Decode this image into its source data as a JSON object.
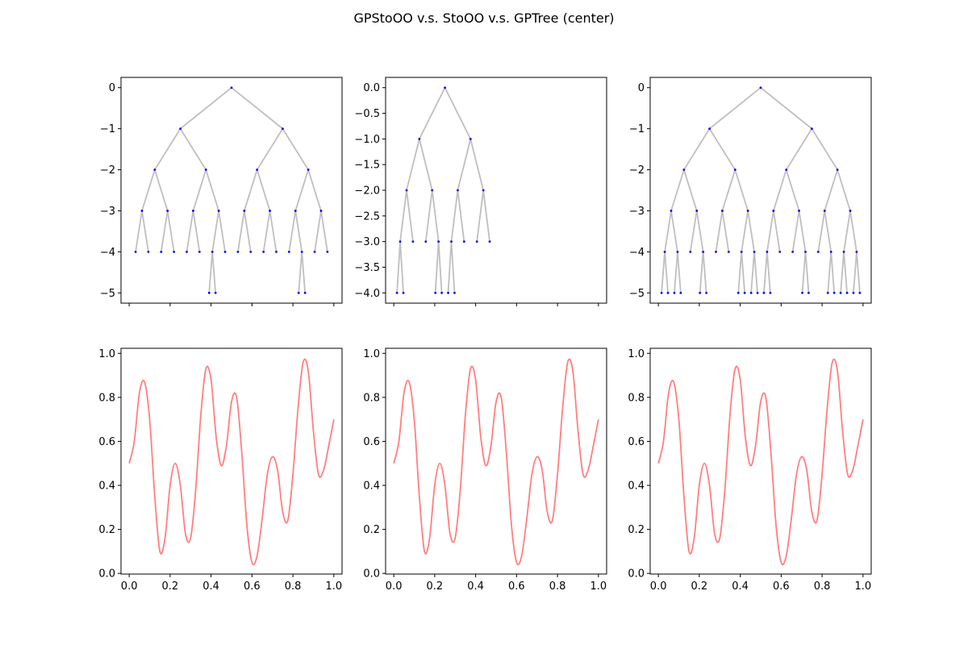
{
  "figure": {
    "title": "GPStoOO v.s. StoOO v.s. GPTree (center)"
  },
  "colors": {
    "tree_edge": "#bfbfbf",
    "tree_node": "#0000ff",
    "curve": "#ff7f7f",
    "axes": "#000000"
  },
  "chart_data": [
    {
      "type": "tree",
      "panel": "top-left",
      "ylim": [
        -5.25,
        0.25
      ],
      "xlim": [
        -0.04,
        1.04
      ],
      "yticks": [
        0,
        -1,
        -2,
        -3,
        -4,
        -5
      ],
      "ytick_labels": [
        "0",
        "−1",
        "−2",
        "−3",
        "−4",
        "−5"
      ],
      "xticks": [
        0,
        0.2,
        0.4,
        0.6,
        0.8,
        1.0
      ],
      "xtick_labels_visible": false,
      "node_x_unit": "(i + 0.5) / 2^depth",
      "depth_sign": -1,
      "nodes": [
        [
          0,
          0
        ],
        [
          1,
          0
        ],
        [
          1,
          1
        ],
        [
          2,
          0
        ],
        [
          2,
          1
        ],
        [
          2,
          2
        ],
        [
          2,
          3
        ],
        [
          3,
          0
        ],
        [
          3,
          1
        ],
        [
          3,
          2
        ],
        [
          3,
          3
        ],
        [
          3,
          4
        ],
        [
          3,
          5
        ],
        [
          3,
          6
        ],
        [
          3,
          7
        ],
        [
          4,
          0
        ],
        [
          4,
          1
        ],
        [
          4,
          2
        ],
        [
          4,
          3
        ],
        [
          4,
          4
        ],
        [
          4,
          5
        ],
        [
          4,
          6
        ],
        [
          4,
          7
        ],
        [
          4,
          8
        ],
        [
          4,
          9
        ],
        [
          4,
          10
        ],
        [
          4,
          11
        ],
        [
          4,
          12
        ],
        [
          4,
          13
        ],
        [
          4,
          14
        ],
        [
          4,
          15
        ],
        [
          5,
          12
        ],
        [
          5,
          13
        ],
        [
          5,
          26
        ],
        [
          5,
          27
        ]
      ]
    },
    {
      "type": "tree",
      "panel": "top-middle",
      "ylim": [
        -4.2,
        0.2
      ],
      "xlim": [
        -0.04,
        1.04
      ],
      "yticks": [
        0,
        -0.5,
        -1,
        -1.5,
        -2,
        -2.5,
        -3,
        -3.5,
        -4
      ],
      "ytick_labels": [
        "0.0",
        "−0.5",
        "−1.0",
        "−1.5",
        "−2.0",
        "−2.5",
        "−3.0",
        "−3.5",
        "−4.0"
      ],
      "xticks": [
        0,
        0.2,
        0.4,
        0.6,
        0.8,
        1.0
      ],
      "xtick_labels_visible": false,
      "node_x_unit": "(i + 0.5) / 2^(depth+1)",
      "depth_sign": -1,
      "nodes": [
        [
          0,
          0
        ],
        [
          1,
          0
        ],
        [
          1,
          1
        ],
        [
          2,
          0
        ],
        [
          2,
          1
        ],
        [
          2,
          2
        ],
        [
          2,
          3
        ],
        [
          3,
          0
        ],
        [
          3,
          1
        ],
        [
          3,
          2
        ],
        [
          3,
          3
        ],
        [
          3,
          4
        ],
        [
          3,
          5
        ],
        [
          3,
          6
        ],
        [
          3,
          7
        ],
        [
          4,
          0
        ],
        [
          4,
          1
        ],
        [
          4,
          6
        ],
        [
          4,
          7
        ],
        [
          4,
          8
        ],
        [
          4,
          9
        ]
      ]
    },
    {
      "type": "tree",
      "panel": "top-right",
      "ylim": [
        -5.25,
        0.25
      ],
      "xlim": [
        -0.04,
        1.04
      ],
      "yticks": [
        0,
        -1,
        -2,
        -3,
        -4,
        -5
      ],
      "ytick_labels": [
        "0",
        "−1",
        "−2",
        "−3",
        "−4",
        "−5"
      ],
      "xticks": [
        0,
        0.2,
        0.4,
        0.6,
        0.8,
        1.0
      ],
      "xtick_labels_visible": false,
      "node_x_unit": "(i + 0.5) / 2^depth",
      "depth_sign": -1,
      "nodes": [
        [
          0,
          0
        ],
        [
          1,
          0
        ],
        [
          1,
          1
        ],
        [
          2,
          0
        ],
        [
          2,
          1
        ],
        [
          2,
          2
        ],
        [
          2,
          3
        ],
        [
          3,
          0
        ],
        [
          3,
          1
        ],
        [
          3,
          2
        ],
        [
          3,
          3
        ],
        [
          3,
          4
        ],
        [
          3,
          5
        ],
        [
          3,
          6
        ],
        [
          3,
          7
        ],
        [
          4,
          0
        ],
        [
          4,
          1
        ],
        [
          4,
          2
        ],
        [
          4,
          3
        ],
        [
          4,
          4
        ],
        [
          4,
          5
        ],
        [
          4,
          6
        ],
        [
          4,
          7
        ],
        [
          4,
          8
        ],
        [
          4,
          9
        ],
        [
          4,
          10
        ],
        [
          4,
          11
        ],
        [
          4,
          12
        ],
        [
          4,
          13
        ],
        [
          4,
          14
        ],
        [
          4,
          15
        ],
        [
          5,
          0
        ],
        [
          5,
          1
        ],
        [
          5,
          2
        ],
        [
          5,
          3
        ],
        [
          5,
          6
        ],
        [
          5,
          7
        ],
        [
          5,
          12
        ],
        [
          5,
          13
        ],
        [
          5,
          14
        ],
        [
          5,
          15
        ],
        [
          5,
          16
        ],
        [
          5,
          17
        ],
        [
          5,
          22
        ],
        [
          5,
          23
        ],
        [
          5,
          26
        ],
        [
          5,
          27
        ],
        [
          5,
          28
        ],
        [
          5,
          29
        ],
        [
          5,
          30
        ],
        [
          5,
          31
        ]
      ]
    },
    {
      "type": "line",
      "panel": "bottom-left",
      "xlim": [
        -0.04,
        1.04
      ],
      "ylim": [
        -0.003,
        1.023
      ],
      "xticks": [
        0,
        0.2,
        0.4,
        0.6,
        0.8,
        1.0
      ],
      "xtick_labels": [
        "0.0",
        "0.2",
        "0.4",
        "0.6",
        "0.8",
        "1.0"
      ],
      "yticks": [
        0,
        0.2,
        0.4,
        0.6,
        0.8,
        1.0
      ],
      "ytick_labels": [
        "0.0",
        "0.2",
        "0.4",
        "0.6",
        "0.8",
        "1.0"
      ],
      "x": [
        0.0,
        0.025,
        0.05,
        0.075,
        0.1,
        0.125,
        0.15,
        0.175,
        0.2,
        0.225,
        0.25,
        0.275,
        0.3,
        0.325,
        0.35,
        0.375,
        0.4,
        0.425,
        0.45,
        0.475,
        0.5,
        0.525,
        0.55,
        0.575,
        0.6,
        0.625,
        0.65,
        0.675,
        0.7,
        0.725,
        0.75,
        0.775,
        0.8,
        0.825,
        0.85,
        0.875,
        0.9,
        0.925,
        0.95,
        0.975,
        1.0
      ],
      "y": [
        0.5,
        0.6,
        0.82,
        0.87,
        0.7,
        0.35,
        0.1,
        0.16,
        0.4,
        0.5,
        0.4,
        0.18,
        0.16,
        0.38,
        0.72,
        0.93,
        0.88,
        0.62,
        0.49,
        0.58,
        0.78,
        0.8,
        0.55,
        0.22,
        0.05,
        0.08,
        0.25,
        0.45,
        0.53,
        0.47,
        0.28,
        0.24,
        0.45,
        0.75,
        0.96,
        0.92,
        0.65,
        0.45,
        0.47,
        0.58,
        0.7
      ]
    },
    {
      "type": "line",
      "panel": "bottom-middle",
      "xlim": [
        -0.04,
        1.04
      ],
      "ylim": [
        -0.003,
        1.023
      ],
      "xticks": [
        0,
        0.2,
        0.4,
        0.6,
        0.8,
        1.0
      ],
      "xtick_labels": [
        "0.0",
        "0.2",
        "0.4",
        "0.6",
        "0.8",
        "1.0"
      ],
      "yticks": [
        0,
        0.2,
        0.4,
        0.6,
        0.8,
        1.0
      ],
      "ytick_labels": [
        "0.0",
        "0.2",
        "0.4",
        "0.6",
        "0.8",
        "1.0"
      ],
      "x": [
        0.0,
        0.025,
        0.05,
        0.075,
        0.1,
        0.125,
        0.15,
        0.175,
        0.2,
        0.225,
        0.25,
        0.275,
        0.3,
        0.325,
        0.35,
        0.375,
        0.4,
        0.425,
        0.45,
        0.475,
        0.5,
        0.525,
        0.55,
        0.575,
        0.6,
        0.625,
        0.65,
        0.675,
        0.7,
        0.725,
        0.75,
        0.775,
        0.8,
        0.825,
        0.85,
        0.875,
        0.9,
        0.925,
        0.95,
        0.975,
        1.0
      ],
      "y": [
        0.5,
        0.6,
        0.82,
        0.87,
        0.7,
        0.35,
        0.1,
        0.16,
        0.4,
        0.5,
        0.4,
        0.18,
        0.16,
        0.38,
        0.72,
        0.93,
        0.88,
        0.62,
        0.49,
        0.58,
        0.78,
        0.8,
        0.55,
        0.22,
        0.05,
        0.08,
        0.25,
        0.45,
        0.53,
        0.47,
        0.28,
        0.24,
        0.45,
        0.75,
        0.96,
        0.92,
        0.65,
        0.45,
        0.47,
        0.58,
        0.7
      ]
    },
    {
      "type": "line",
      "panel": "bottom-right",
      "xlim": [
        -0.04,
        1.04
      ],
      "ylim": [
        -0.003,
        1.023
      ],
      "xticks": [
        0,
        0.2,
        0.4,
        0.6,
        0.8,
        1.0
      ],
      "xtick_labels": [
        "0.0",
        "0.2",
        "0.4",
        "0.6",
        "0.8",
        "1.0"
      ],
      "yticks": [
        0,
        0.2,
        0.4,
        0.6,
        0.8,
        1.0
      ],
      "ytick_labels": [
        "0.0",
        "0.2",
        "0.4",
        "0.6",
        "0.8",
        "1.0"
      ],
      "x": [
        0.0,
        0.025,
        0.05,
        0.075,
        0.1,
        0.125,
        0.15,
        0.175,
        0.2,
        0.225,
        0.25,
        0.275,
        0.3,
        0.325,
        0.35,
        0.375,
        0.4,
        0.425,
        0.45,
        0.475,
        0.5,
        0.525,
        0.55,
        0.575,
        0.6,
        0.625,
        0.65,
        0.675,
        0.7,
        0.725,
        0.75,
        0.775,
        0.8,
        0.825,
        0.85,
        0.875,
        0.9,
        0.925,
        0.95,
        0.975,
        1.0
      ],
      "y": [
        0.5,
        0.6,
        0.82,
        0.87,
        0.7,
        0.35,
        0.1,
        0.16,
        0.4,
        0.5,
        0.4,
        0.18,
        0.16,
        0.38,
        0.72,
        0.93,
        0.88,
        0.62,
        0.49,
        0.58,
        0.78,
        0.8,
        0.55,
        0.22,
        0.05,
        0.08,
        0.25,
        0.45,
        0.53,
        0.47,
        0.28,
        0.24,
        0.45,
        0.75,
        0.96,
        0.92,
        0.65,
        0.45,
        0.47,
        0.58,
        0.7
      ]
    }
  ]
}
